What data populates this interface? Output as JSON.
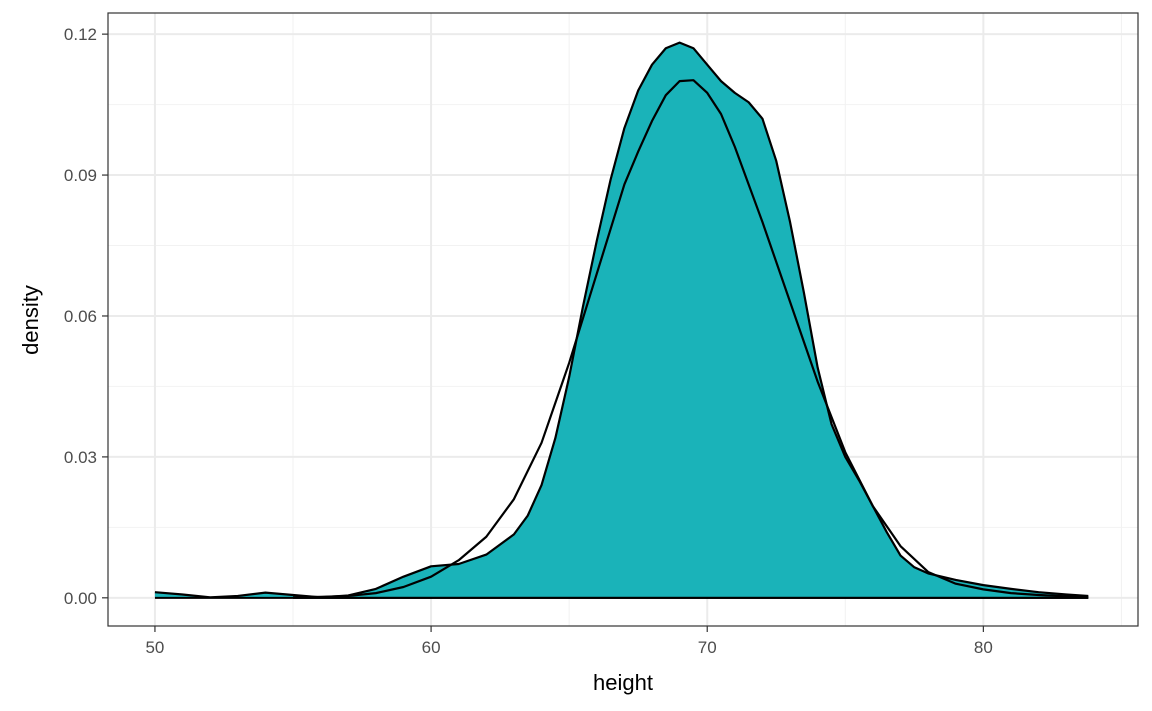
{
  "chart_data": {
    "type": "area",
    "xlabel": "height",
    "ylabel": "density",
    "xlim": [
      48.3,
      85.6
    ],
    "ylim": [
      -0.006,
      0.1245
    ],
    "x_ticks": [
      50,
      60,
      70,
      80
    ],
    "x_tick_labels": [
      "50",
      "60",
      "70",
      "80"
    ],
    "x_minor_ticks": [
      55,
      65,
      75,
      85
    ],
    "y_ticks": [
      0,
      0.03,
      0.06,
      0.09,
      0.12
    ],
    "y_tick_labels": [
      "0.00",
      "0.03",
      "0.06",
      "0.09",
      "0.12"
    ],
    "y_minor_ticks": [
      0.015,
      0.045,
      0.075,
      0.105
    ],
    "grid": true,
    "series": [
      {
        "fill": "#1AB3B9",
        "stroke": "#000000",
        "points": [
          [
            50,
            0.0012
          ],
          [
            51,
            0.0007
          ],
          [
            52,
            0.0001
          ],
          [
            53,
            0.0004
          ],
          [
            54,
            0.0011
          ],
          [
            55,
            0.0006
          ],
          [
            56,
            0.0001
          ],
          [
            57,
            0.0005
          ],
          [
            58,
            0.0019
          ],
          [
            59,
            0.0045
          ],
          [
            60,
            0.0067
          ],
          [
            61,
            0.0072
          ],
          [
            62,
            0.0092
          ],
          [
            63,
            0.0135
          ],
          [
            63.5,
            0.0175
          ],
          [
            64,
            0.024
          ],
          [
            64.5,
            0.034
          ],
          [
            65,
            0.047
          ],
          [
            65.5,
            0.062
          ],
          [
            66,
            0.076
          ],
          [
            66.5,
            0.089
          ],
          [
            67,
            0.1
          ],
          [
            67.5,
            0.108
          ],
          [
            68,
            0.1135
          ],
          [
            68.5,
            0.117
          ],
          [
            69,
            0.1182
          ],
          [
            69.5,
            0.117
          ],
          [
            70,
            0.1135
          ],
          [
            70.5,
            0.11
          ],
          [
            71,
            0.1075
          ],
          [
            71.5,
            0.1055
          ],
          [
            72,
            0.102
          ],
          [
            72.5,
            0.093
          ],
          [
            73,
            0.08
          ],
          [
            73.5,
            0.065
          ],
          [
            74,
            0.049
          ],
          [
            74.5,
            0.037
          ],
          [
            75,
            0.03
          ],
          [
            75.5,
            0.025
          ],
          [
            76,
            0.0195
          ],
          [
            76.5,
            0.014
          ],
          [
            77,
            0.009
          ],
          [
            77.5,
            0.0065
          ],
          [
            78,
            0.0052
          ],
          [
            79,
            0.0038
          ],
          [
            80,
            0.0027
          ],
          [
            81,
            0.0019
          ],
          [
            82,
            0.0012
          ],
          [
            83,
            0.0007
          ],
          [
            83.8,
            0.0004
          ]
        ]
      },
      {
        "fill": "none",
        "stroke": "#000000",
        "points": [
          [
            55,
            0.0001
          ],
          [
            56,
            0.0002
          ],
          [
            57,
            0.0004
          ],
          [
            58,
            0.001
          ],
          [
            59,
            0.0023
          ],
          [
            60,
            0.0045
          ],
          [
            61,
            0.008
          ],
          [
            62,
            0.013
          ],
          [
            63,
            0.021
          ],
          [
            64,
            0.033
          ],
          [
            65,
            0.05
          ],
          [
            66,
            0.069
          ],
          [
            67,
            0.088
          ],
          [
            67.5,
            0.095
          ],
          [
            68,
            0.1015
          ],
          [
            68.5,
            0.107
          ],
          [
            69,
            0.11
          ],
          [
            69.5,
            0.1102
          ],
          [
            70,
            0.1075
          ],
          [
            70.5,
            0.103
          ],
          [
            71,
            0.096
          ],
          [
            72,
            0.08
          ],
          [
            73,
            0.063
          ],
          [
            74,
            0.046
          ],
          [
            75,
            0.031
          ],
          [
            76,
            0.0195
          ],
          [
            77,
            0.011
          ],
          [
            78,
            0.0055
          ],
          [
            79,
            0.003
          ],
          [
            80,
            0.0018
          ],
          [
            81,
            0.001
          ],
          [
            82,
            0.0006
          ],
          [
            83,
            0.0003
          ],
          [
            83.8,
            0.0002
          ]
        ]
      }
    ]
  }
}
